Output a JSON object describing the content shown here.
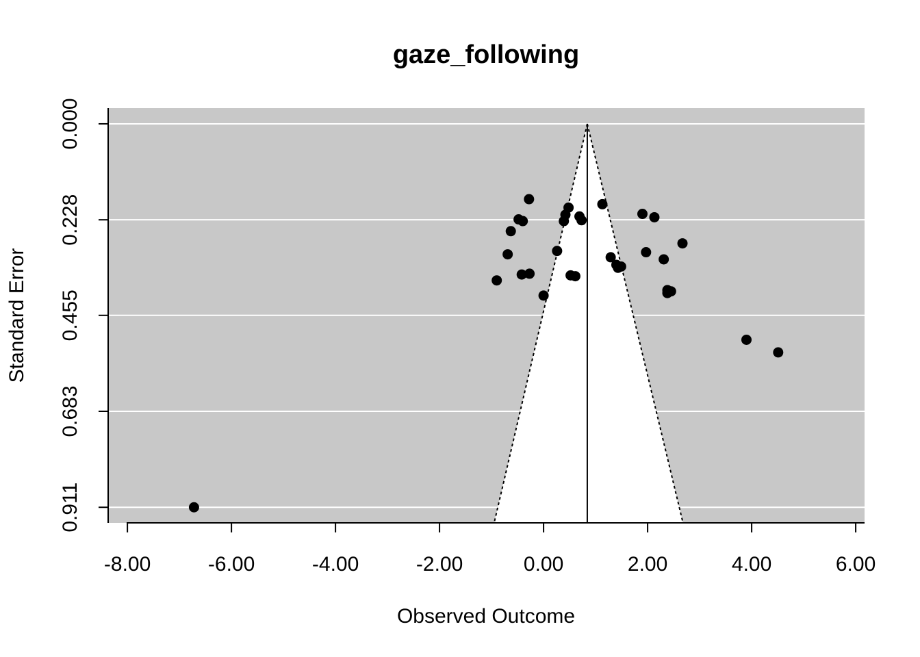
{
  "chart_data": {
    "type": "scatter",
    "subtype": "funnel",
    "title": "gaze_following",
    "xlabel": "Observed Outcome",
    "ylabel": "Standard Error",
    "xlim": [
      -8.37,
      6.17
    ],
    "ylim": [
      0.948,
      -0.0373
    ],
    "y_reversed": true,
    "x_ticks": [
      -8,
      -6,
      -4,
      -2,
      0,
      2,
      4,
      6
    ],
    "x_tick_labels": [
      "-8.00",
      "-6.00",
      "-4.00",
      "-2.00",
      "0.00",
      "2.00",
      "4.00",
      "6.00"
    ],
    "y_ticks": [
      0,
      0.228,
      0.455,
      0.683,
      0.911
    ],
    "y_tick_labels": [
      "0.000",
      "0.228",
      "0.455",
      "0.683",
      "0.911"
    ],
    "grid": "horizontal",
    "background_color": "#c8c8c8",
    "funnel_color": "#ffffff",
    "point_color": "#000000",
    "estimate": 0.84,
    "funnel_base": [
      -0.95,
      2.68
    ],
    "points": [
      {
        "x": -6.72,
        "y": 0.911
      },
      {
        "x": -0.9,
        "y": 0.372
      },
      {
        "x": -0.69,
        "y": 0.31
      },
      {
        "x": -0.63,
        "y": 0.255
      },
      {
        "x": -0.48,
        "y": 0.227
      },
      {
        "x": -0.42,
        "y": 0.358
      },
      {
        "x": -0.4,
        "y": 0.231
      },
      {
        "x": -0.28,
        "y": 0.179
      },
      {
        "x": -0.27,
        "y": 0.356
      },
      {
        "x": 0.0,
        "y": 0.408
      },
      {
        "x": 0.26,
        "y": 0.302
      },
      {
        "x": 0.39,
        "y": 0.231
      },
      {
        "x": 0.42,
        "y": 0.216
      },
      {
        "x": 0.48,
        "y": 0.199
      },
      {
        "x": 0.52,
        "y": 0.36
      },
      {
        "x": 0.61,
        "y": 0.362
      },
      {
        "x": 0.69,
        "y": 0.22
      },
      {
        "x": 0.73,
        "y": 0.229
      },
      {
        "x": 1.13,
        "y": 0.191
      },
      {
        "x": 1.29,
        "y": 0.317
      },
      {
        "x": 1.4,
        "y": 0.335
      },
      {
        "x": 1.43,
        "y": 0.342
      },
      {
        "x": 1.49,
        "y": 0.339
      },
      {
        "x": 1.9,
        "y": 0.214
      },
      {
        "x": 1.97,
        "y": 0.305
      },
      {
        "x": 2.13,
        "y": 0.222
      },
      {
        "x": 2.31,
        "y": 0.322
      },
      {
        "x": 2.38,
        "y": 0.395
      },
      {
        "x": 2.38,
        "y": 0.402
      },
      {
        "x": 2.45,
        "y": 0.398
      },
      {
        "x": 2.67,
        "y": 0.284
      },
      {
        "x": 3.9,
        "y": 0.513
      },
      {
        "x": 4.51,
        "y": 0.543
      }
    ]
  }
}
